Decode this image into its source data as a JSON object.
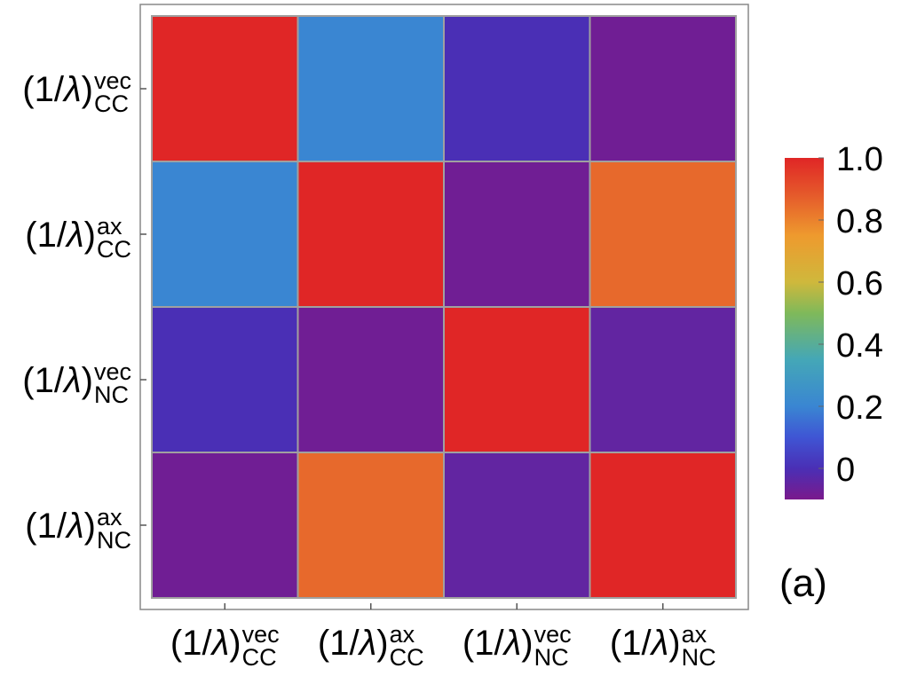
{
  "chart_data": {
    "type": "heatmap",
    "title": "",
    "panel_label": "(a)",
    "rows": [
      {
        "base": "(1/",
        "lambda": "λ",
        "close": ")",
        "sup": "vec",
        "sub": "CC"
      },
      {
        "base": "(1/",
        "lambda": "λ",
        "close": ")",
        "sup": "ax",
        "sub": "CC"
      },
      {
        "base": "(1/",
        "lambda": "λ",
        "close": ")",
        "sup": "vec",
        "sub": "NC"
      },
      {
        "base": "(1/",
        "lambda": "λ",
        "close": ")",
        "sup": "ax",
        "sub": "NC"
      }
    ],
    "columns": [
      {
        "base": "(1/",
        "lambda": "λ",
        "close": ")",
        "sup": "vec",
        "sub": "CC"
      },
      {
        "base": "(1/",
        "lambda": "λ",
        "close": ")",
        "sup": "ax",
        "sub": "CC"
      },
      {
        "base": "(1/",
        "lambda": "λ",
        "close": ")",
        "sup": "vec",
        "sub": "NC"
      },
      {
        "base": "(1/",
        "lambda": "λ",
        "close": ")",
        "sup": "ax",
        "sub": "NC"
      }
    ],
    "values": [
      [
        1.0,
        0.2,
        0.0,
        -0.08
      ],
      [
        0.2,
        1.0,
        -0.08,
        0.85
      ],
      [
        0.0,
        -0.08,
        1.0,
        -0.05
      ],
      [
        -0.08,
        0.85,
        -0.05,
        1.0
      ]
    ],
    "colorbar": {
      "range": [
        -0.1,
        1.0
      ],
      "ticks": [
        1.0,
        0.8,
        0.6,
        0.4,
        0.2,
        0.0
      ],
      "tick_labels": [
        "1.0",
        "0.8",
        "0.6",
        "0.4",
        "0.2",
        "0"
      ],
      "stops": [
        {
          "v": -0.1,
          "color": "#7a1a8c"
        },
        {
          "v": 0.0,
          "color": "#4a2fb5"
        },
        {
          "v": 0.1,
          "color": "#3f55d4"
        },
        {
          "v": 0.2,
          "color": "#3a86d2"
        },
        {
          "v": 0.35,
          "color": "#44a7b7"
        },
        {
          "v": 0.5,
          "color": "#7fb95a"
        },
        {
          "v": 0.6,
          "color": "#cfb83c"
        },
        {
          "v": 0.75,
          "color": "#ee9a2e"
        },
        {
          "v": 0.88,
          "color": "#e55a2b"
        },
        {
          "v": 1.0,
          "color": "#e02626"
        }
      ]
    }
  }
}
